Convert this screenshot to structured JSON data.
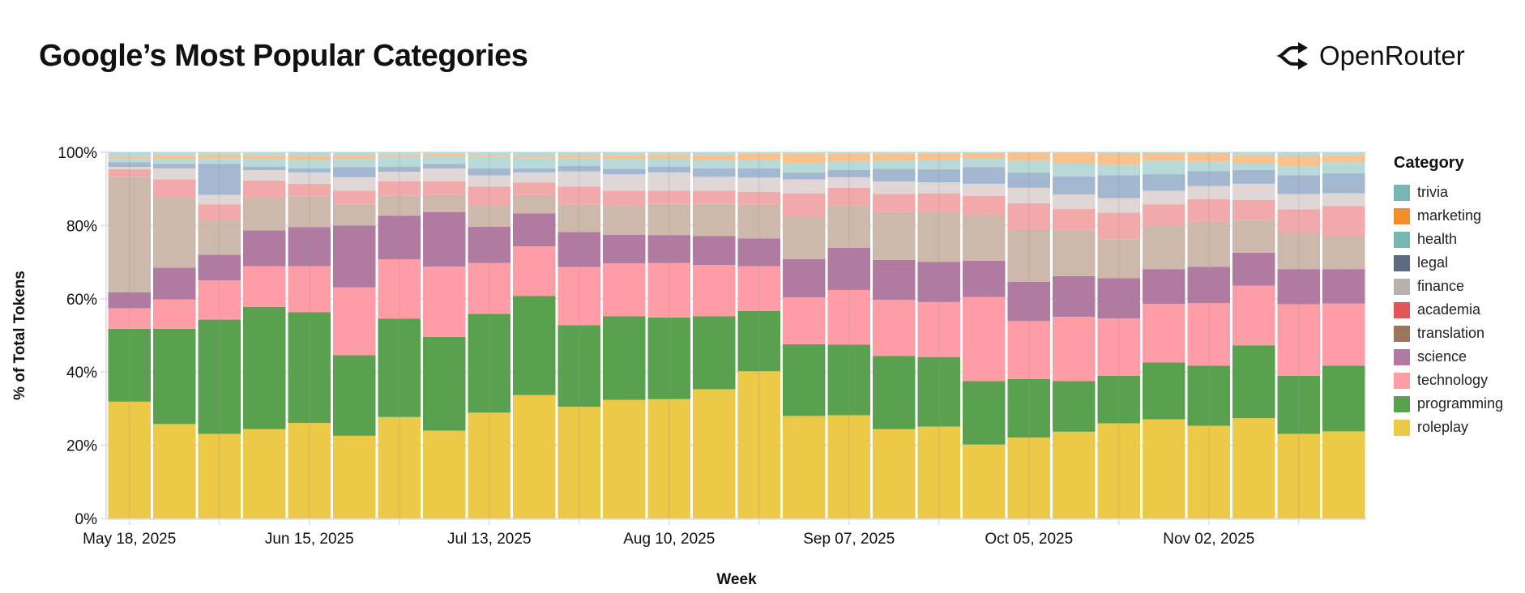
{
  "header": {
    "title": "Google’s Most Popular Categories",
    "logo_text": "OpenRouter"
  },
  "chart_data": {
    "type": "bar",
    "stacked": true,
    "normalized": true,
    "title": "Google’s Most Popular Categories",
    "xlabel": "Week",
    "ylabel": "% of Total Tokens",
    "ylim": [
      0,
      100
    ],
    "yticks": [
      "0%",
      "20%",
      "40%",
      "60%",
      "80%",
      "100%"
    ],
    "grid": true,
    "legend_title": "Category",
    "legend_placement": "right",
    "x_tick_labels": [
      "May 18, 2025",
      "Jun 15, 2025",
      "Jul 13, 2025",
      "Aug 10, 2025",
      "Sep 07, 2025",
      "Oct 05, 2025",
      "Nov 02, 2025"
    ],
    "categories": [
      "2025-05-18",
      "2025-05-25",
      "2025-06-01",
      "2025-06-08",
      "2025-06-15",
      "2025-06-22",
      "2025-06-29",
      "2025-07-06",
      "2025-07-13",
      "2025-07-20",
      "2025-07-27",
      "2025-08-03",
      "2025-08-10",
      "2025-08-17",
      "2025-08-24",
      "2025-08-31",
      "2025-09-07",
      "2025-09-14",
      "2025-09-21",
      "2025-09-28",
      "2025-10-05",
      "2025-10-12",
      "2025-10-19",
      "2025-10-26",
      "2025-11-02",
      "2025-11-09",
      "2025-11-16",
      "2025-11-23"
    ],
    "legend": [
      {
        "name": "trivia",
        "color": "#76B7B2"
      },
      {
        "name": "marketing",
        "color": "#F28E2B"
      },
      {
        "name": "health",
        "color": "#76B7B2"
      },
      {
        "name": "legal",
        "color": "#5C6B7D"
      },
      {
        "name": "finance",
        "color": "#BAB0AC"
      },
      {
        "name": "academia",
        "color": "#E15759"
      },
      {
        "name": "translation",
        "color": "#9C755F"
      },
      {
        "name": "science",
        "color": "#B07AA1"
      },
      {
        "name": "technology",
        "color": "#FF9DA7"
      },
      {
        "name": "programming",
        "color": "#59A14F"
      },
      {
        "name": "roleplay",
        "color": "#EDC948"
      }
    ],
    "series": [
      {
        "name": "roleplay",
        "color": "#EDC948",
        "values": [
          31.9,
          25.8,
          23.1,
          24.4,
          26.1,
          22.6,
          27.7,
          24.0,
          28.9,
          33.7,
          30.5,
          32.4,
          32.6,
          35.3,
          40.2,
          28.0,
          28.2,
          24.4,
          25.1,
          20.2,
          22.1,
          23.7,
          26.0,
          27.1,
          25.3,
          27.4,
          23.1,
          23.8
        ]
      },
      {
        "name": "programming",
        "color": "#59A14F",
        "values": [
          19.9,
          26.0,
          31.2,
          33.4,
          30.2,
          22.0,
          26.9,
          25.6,
          27.0,
          27.1,
          22.3,
          22.8,
          22.3,
          19.9,
          16.5,
          19.6,
          19.3,
          20.0,
          19.0,
          17.3,
          16.0,
          13.8,
          13.0,
          15.5,
          16.4,
          19.9,
          15.9,
          17.9
        ]
      },
      {
        "name": "technology",
        "color": "#FF9DA7",
        "values": [
          5.6,
          8.0,
          10.7,
          11.1,
          12.6,
          18.5,
          16.2,
          19.2,
          13.9,
          13.5,
          15.9,
          14.5,
          14.9,
          14.0,
          12.2,
          12.8,
          14.9,
          15.3,
          15.0,
          23.0,
          15.8,
          17.6,
          15.6,
          16.0,
          17.1,
          16.3,
          19.5,
          17.0
        ]
      },
      {
        "name": "science",
        "color": "#B07AA1",
        "values": [
          4.4,
          8.7,
          7.0,
          9.8,
          10.7,
          16.9,
          11.9,
          14.9,
          9.9,
          9.0,
          9.5,
          7.8,
          7.6,
          7.9,
          7.6,
          10.4,
          11.5,
          10.9,
          11.0,
          9.9,
          10.7,
          11.1,
          11.0,
          9.5,
          9.9,
          9.0,
          9.6,
          9.4
        ]
      },
      {
        "name": "finance",
        "color": "#CDB9AB",
        "values": [
          31.5,
          19.1,
          9.4,
          8.9,
          8.4,
          5.8,
          5.4,
          4.6,
          5.8,
          5.0,
          7.5,
          8.1,
          8.5,
          8.9,
          9.2,
          11.6,
          11.7,
          13.2,
          13.5,
          12.6,
          14.4,
          12.5,
          10.7,
          11.9,
          12.3,
          9.0,
          10.0,
          8.9
        ]
      },
      {
        "color": "#F1A9A9",
        "values": [
          2.1,
          5.0,
          4.4,
          4.7,
          3.4,
          3.7,
          4.0,
          3.8,
          5.1,
          3.4,
          4.9,
          3.9,
          3.6,
          3.5,
          3.5,
          6.4,
          4.7,
          4.8,
          5.2,
          5.1,
          7.1,
          5.8,
          7.2,
          5.8,
          6.2,
          5.4,
          6.3,
          8.3
        ]
      },
      {
        "color": "#DFD6D5",
        "values": [
          0.6,
          3.0,
          2.6,
          2.8,
          3.1,
          3.7,
          2.6,
          3.5,
          3.1,
          2.8,
          4.2,
          4.5,
          5.0,
          3.8,
          3.9,
          3.8,
          2.9,
          3.4,
          3.0,
          3.3,
          4.2,
          4.0,
          4.0,
          3.7,
          3.6,
          4.4,
          4.2,
          3.5
        ]
      },
      {
        "name": "legal",
        "color": "#A3B7D0",
        "values": [
          1.3,
          1.2,
          8.4,
          1.0,
          1.1,
          2.7,
          1.4,
          1.2,
          1.9,
          1.1,
          1.5,
          1.5,
          1.6,
          2.3,
          2.5,
          1.9,
          2.0,
          3.5,
          3.6,
          4.5,
          4.2,
          4.9,
          6.2,
          4.5,
          4.0,
          3.8,
          5.1,
          5.5
        ]
      },
      {
        "name": "health",
        "color": "#B7D9D7",
        "values": [
          0.9,
          1.4,
          1.5,
          2.1,
          2.3,
          2.3,
          2.6,
          2.2,
          3.1,
          2.9,
          2.2,
          2.7,
          2.1,
          2.2,
          2.2,
          2.6,
          2.4,
          2.2,
          2.4,
          2.3,
          3.2,
          3.5,
          2.8,
          3.7,
          2.6,
          1.7,
          2.6,
          3.0
        ]
      },
      {
        "name": "marketing",
        "color": "#F9C18B",
        "values": [
          0.6,
          1.1,
          1.1,
          1.1,
          1.1,
          0.9,
          0.7,
          0.6,
          0.6,
          0.5,
          0.8,
          1.1,
          1.2,
          1.4,
          1.8,
          2.5,
          2.1,
          1.9,
          1.8,
          1.6,
          2.2,
          3.0,
          3.3,
          2.1,
          2.4,
          2.4,
          2.7,
          2.0
        ]
      },
      {
        "name": "trivia",
        "color": "#B7D9D7",
        "values": [
          1.2,
          0.7,
          0.6,
          0.7,
          1.0,
          0.9,
          0.6,
          0.4,
          0.7,
          1.0,
          0.7,
          0.7,
          0.6,
          0.8,
          0.4,
          0.4,
          0.3,
          0.4,
          0.4,
          0.2,
          0.1,
          0.1,
          0.2,
          0.2,
          0.2,
          0.7,
          1.0,
          0.7
        ]
      }
    ]
  }
}
